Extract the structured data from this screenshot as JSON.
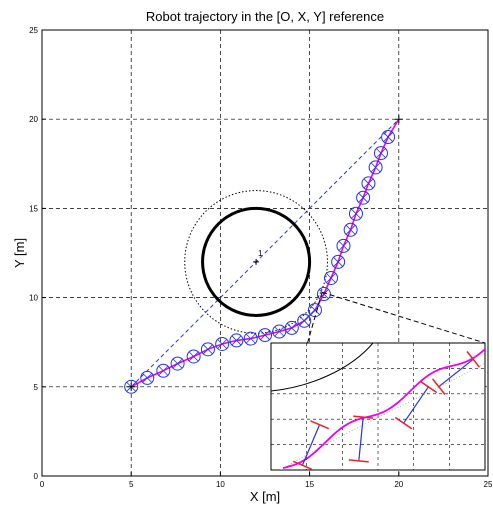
{
  "chart_data": {
    "type": "line",
    "title": "Robot trajectory in the [O, X, Y] reference",
    "xlabel": "X [m]",
    "ylabel": "Y [m]",
    "xlim": [
      0,
      25
    ],
    "ylim": [
      0,
      25
    ],
    "xticks": [
      0,
      5,
      10,
      15,
      20,
      25
    ],
    "yticks": [
      0,
      5,
      10,
      15,
      20,
      25
    ],
    "xtick_labels": [
      "0",
      "5",
      "10",
      "15",
      "20",
      "25"
    ],
    "ytick_labels": [
      "0",
      "5",
      "10",
      "15",
      "20",
      "25"
    ],
    "grid": true,
    "grid_style": "dashed",
    "start": {
      "x": 5,
      "y": 5
    },
    "goal": {
      "x": 20,
      "y": 20
    },
    "obstacle": {
      "center": {
        "x": 12,
        "y": 12
      },
      "radius": 3,
      "safety_radius": 4,
      "label": "1"
    },
    "series": [
      {
        "role": "reference-straight-line",
        "style": "dashed",
        "color": "#2233ee",
        "x": [
          5,
          20
        ],
        "y": [
          5,
          20
        ]
      },
      {
        "role": "robot-path",
        "style": "solid",
        "color": "#ee00ee",
        "x": [
          5.0,
          5.9,
          6.8,
          7.6,
          8.5,
          9.3,
          10.1,
          10.9,
          11.7,
          12.5,
          13.3,
          14.0,
          14.7,
          15.3,
          15.8,
          16.2,
          16.6,
          16.9,
          17.3,
          17.6,
          18.0,
          18.3,
          18.7,
          19.0,
          19.4,
          20.0
        ],
        "y": [
          5.0,
          5.5,
          5.9,
          6.3,
          6.7,
          7.1,
          7.4,
          7.6,
          7.7,
          7.9,
          8.1,
          8.3,
          8.7,
          9.3,
          10.2,
          11.1,
          12.0,
          12.9,
          13.8,
          14.7,
          15.6,
          16.4,
          17.3,
          18.1,
          19.0,
          20.0
        ]
      },
      {
        "role": "robot-positions",
        "marker": "circled-cross",
        "color": "#2233ee",
        "x": [
          5.0,
          5.9,
          6.8,
          7.6,
          8.5,
          9.3,
          10.1,
          10.9,
          11.7,
          12.5,
          13.3,
          14.0,
          14.7,
          15.3,
          15.8,
          16.2,
          16.6,
          16.9,
          17.3,
          17.6,
          18.0,
          18.3,
          18.7,
          19.0,
          19.4
        ],
        "y": [
          5.0,
          5.5,
          5.9,
          6.3,
          6.7,
          7.1,
          7.4,
          7.6,
          7.7,
          7.9,
          8.1,
          8.3,
          8.7,
          9.3,
          10.2,
          11.1,
          12.0,
          12.9,
          13.8,
          14.7,
          15.6,
          16.4,
          17.3,
          18.1,
          19.0
        ]
      }
    ],
    "zoom_inset": {
      "source_point": {
        "x": 15.7,
        "y": 10.3
      },
      "placement": "bottom-right",
      "grid": true,
      "content": "magnified robot body with oscillating magenta path, blue axles and red wheels"
    }
  }
}
